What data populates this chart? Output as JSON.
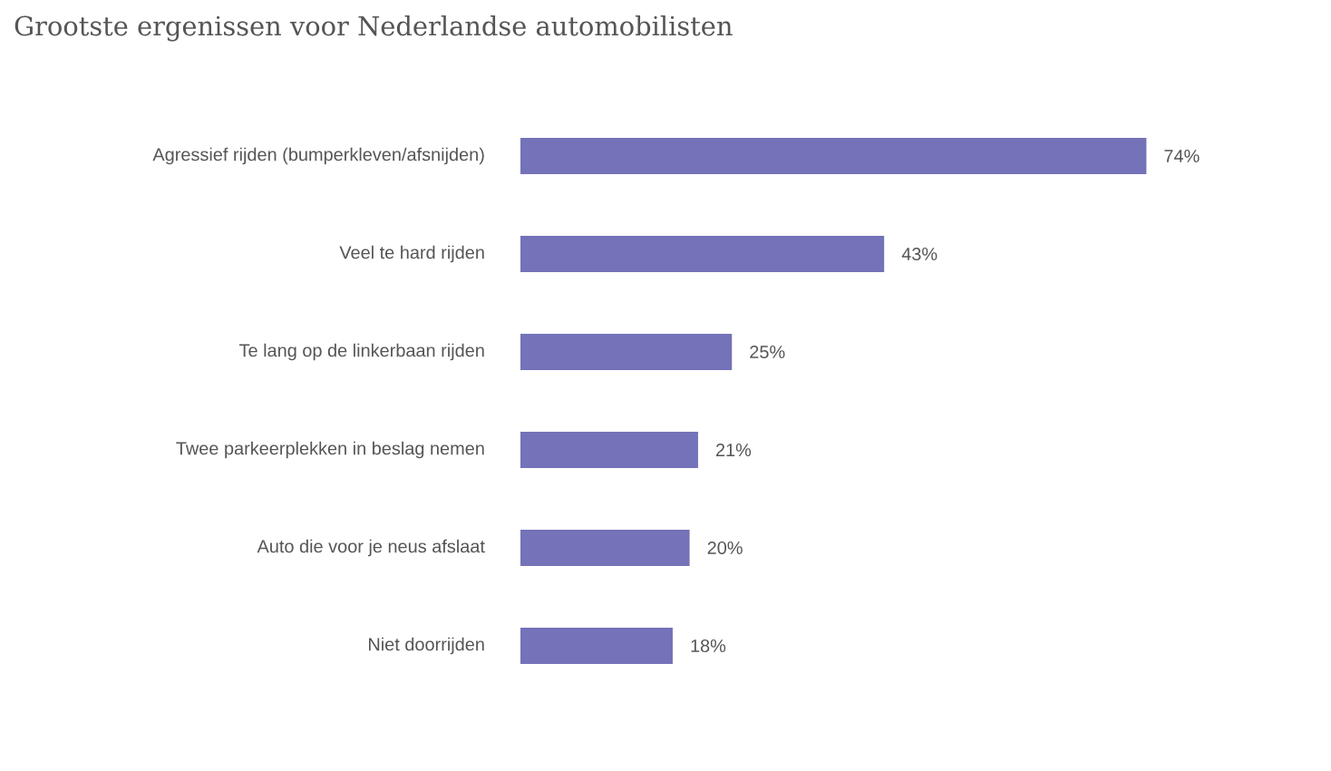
{
  "chart_data": {
    "type": "bar",
    "orientation": "horizontal",
    "title": "Grootste ergenissen voor Nederlandse automobilisten",
    "categories": [
      "Agressief rijden (bumperkleven/afsnijden)",
      "Veel te hard rijden",
      "Te lang op de linkerbaan rijden",
      "Twee parkeerplekken in beslag nemen",
      "Auto die voor je neus afslaat",
      "Niet doorrijden"
    ],
    "values": [
      74,
      43,
      25,
      21,
      20,
      18
    ],
    "value_labels": [
      "74%",
      "43%",
      "25%",
      "21%",
      "20%",
      "18%"
    ],
    "color": "#7472b8"
  }
}
